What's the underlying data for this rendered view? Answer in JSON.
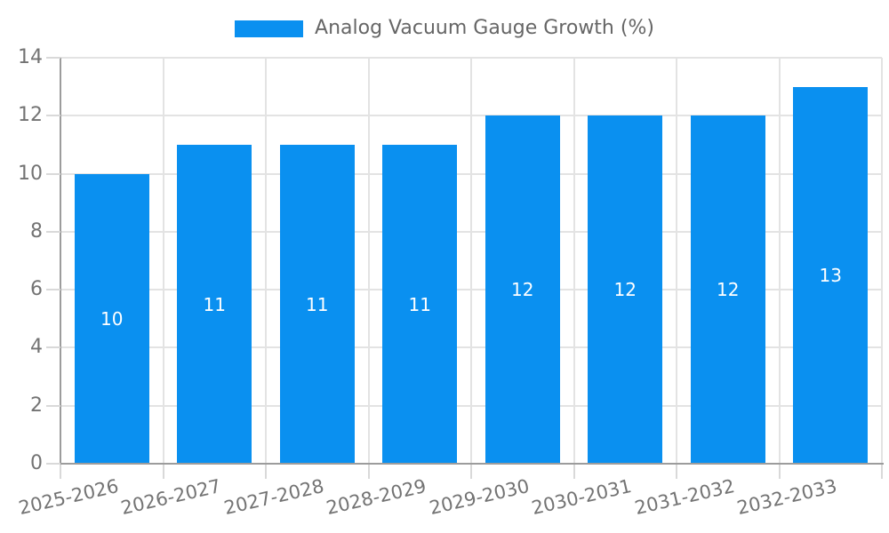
{
  "legend": {
    "series_label": "Analog Vacuum Gauge Growth (%)"
  },
  "colors": {
    "background": "#ffffff",
    "bar": "#0a90f0",
    "grid_line": "#e3e3e3",
    "axis_line": "#9c9c9c",
    "tick_line": "#d9d9d9",
    "axis_text": "#737373",
    "legend_text": "#666666",
    "bar_value_text": "#ffffff"
  },
  "chart_data": {
    "type": "bar",
    "categories": [
      "2025-2026",
      "2026-2027",
      "2027-2028",
      "2028-2029",
      "2029-2030",
      "2030-2031",
      "2031-2032",
      "2032-2033"
    ],
    "series": [
      {
        "name": "Analog Vacuum Gauge Growth (%)",
        "values": [
          10,
          11,
          11,
          11,
          12,
          12,
          12,
          13
        ]
      }
    ],
    "bar_value_labels": [
      "10",
      "11",
      "11",
      "11",
      "12",
      "12",
      "12",
      "13"
    ],
    "ylim": [
      0,
      14
    ],
    "yticks": [
      0,
      2,
      4,
      6,
      8,
      10,
      12,
      14
    ],
    "xlabel": "",
    "ylabel": "",
    "grid": true,
    "legend_position": "top"
  }
}
